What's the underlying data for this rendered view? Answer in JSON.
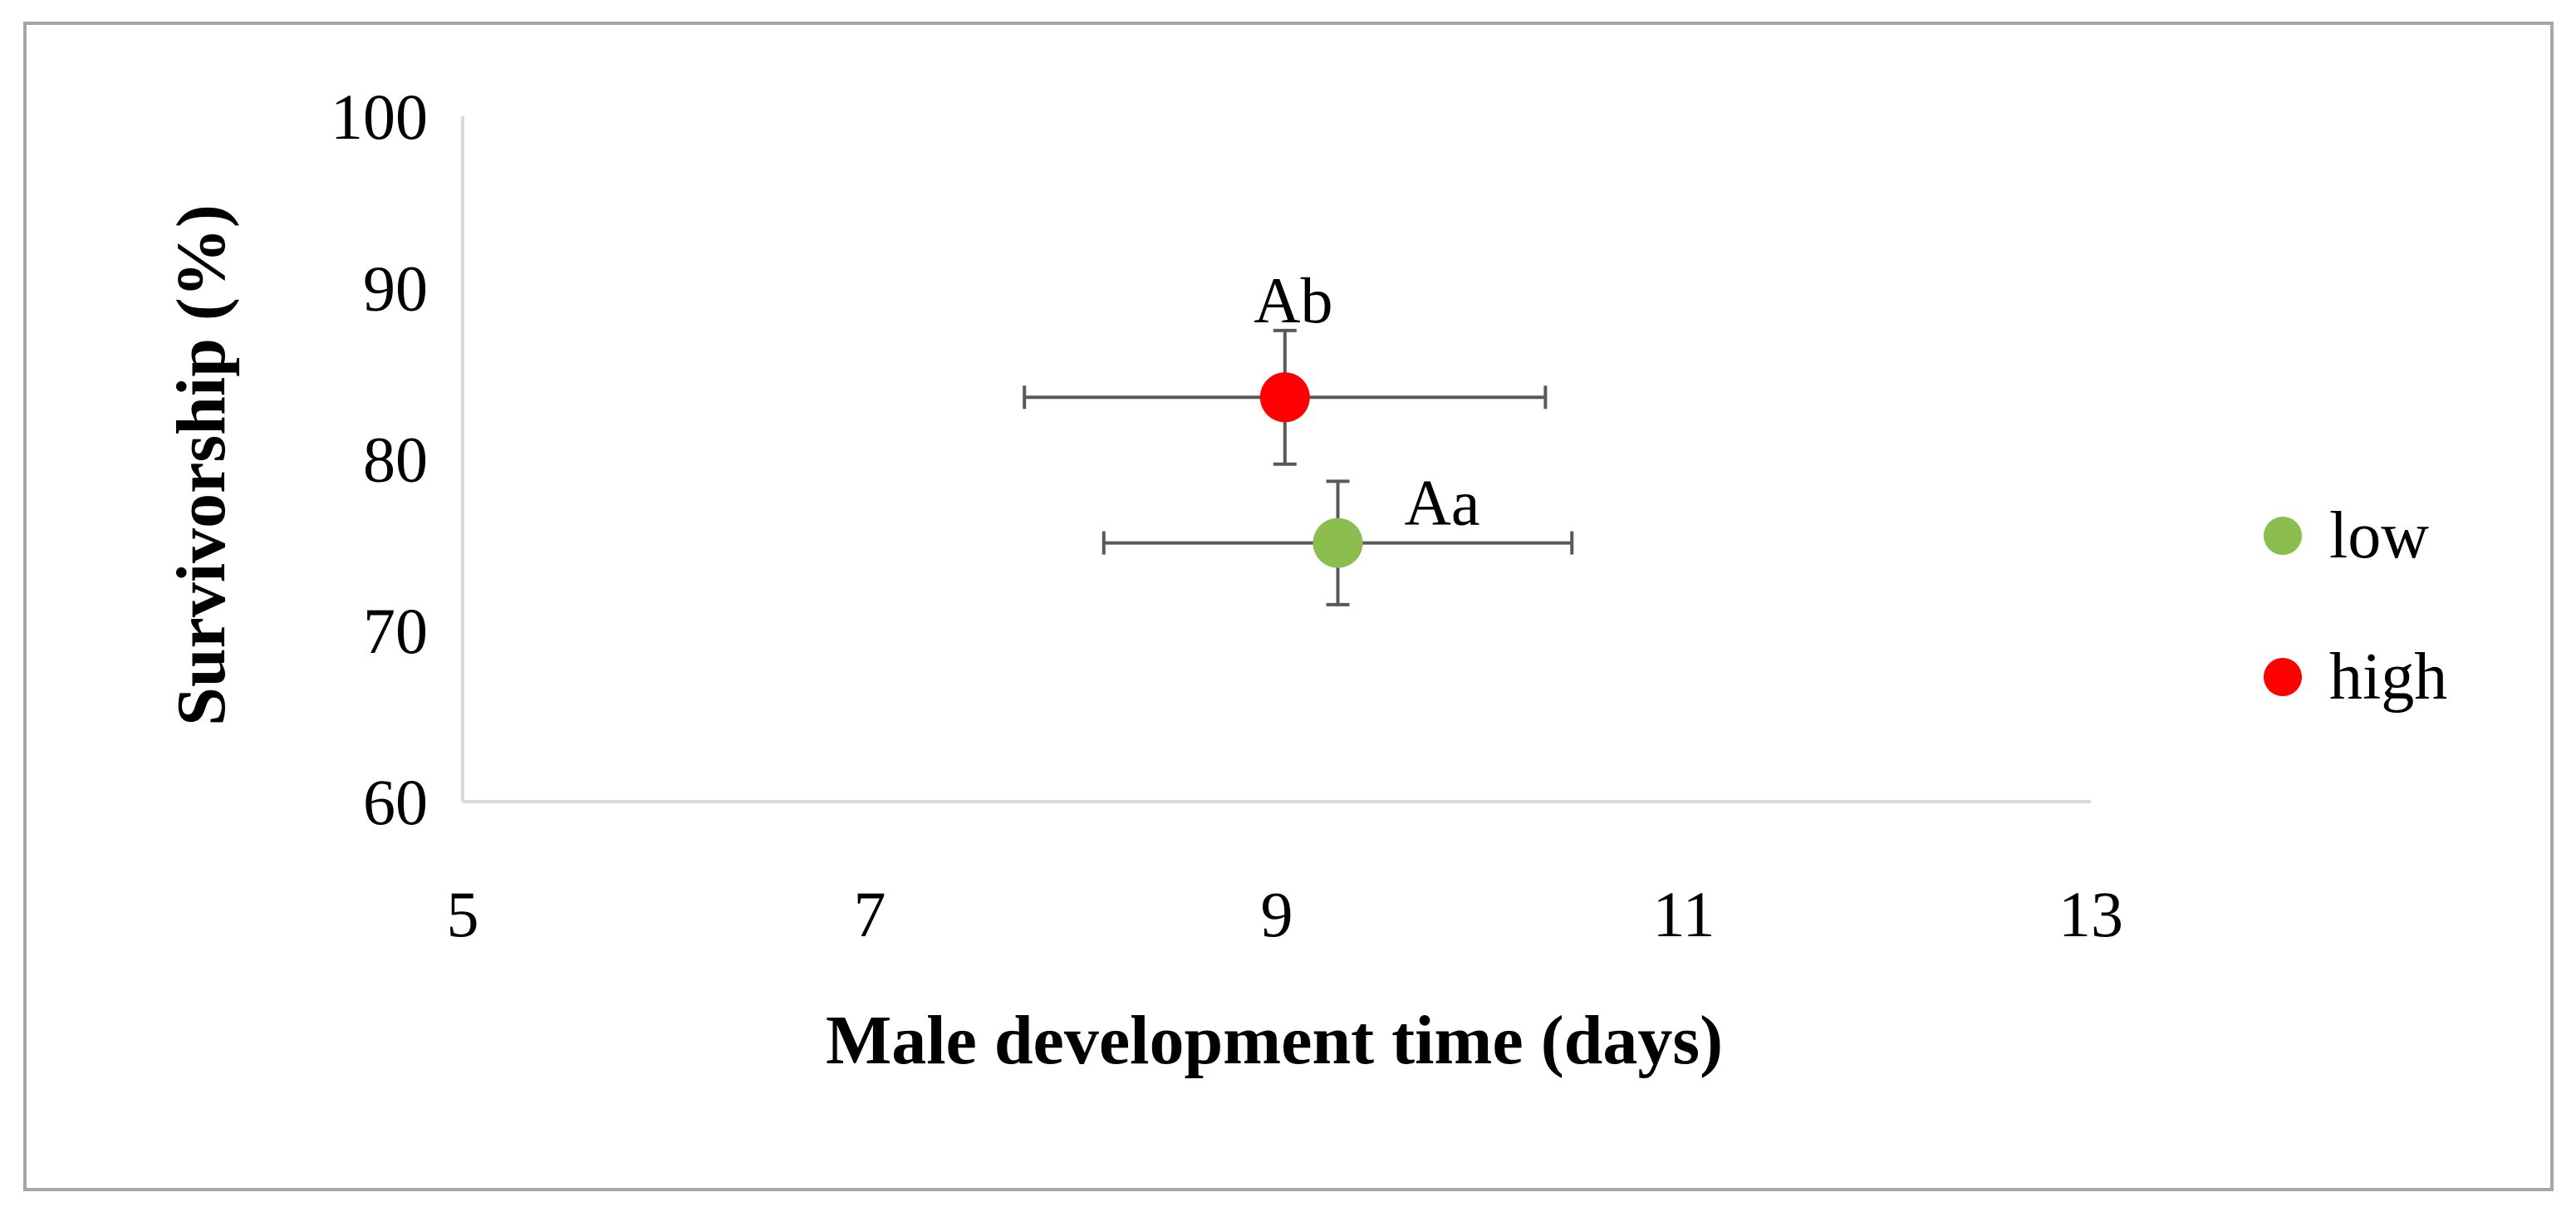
{
  "chart_data": {
    "type": "scatter",
    "title": "",
    "xlabel": "Male development time (days)",
    "ylabel": "Survivorship (%)",
    "xlim": [
      5,
      13
    ],
    "ylim": [
      60,
      100
    ],
    "xticks": [
      5,
      7,
      9,
      11,
      13
    ],
    "yticks": [
      60,
      70,
      80,
      90,
      100
    ],
    "grid": false,
    "legend_position": "right",
    "series": [
      {
        "name": "low",
        "color": "#8cbd4f",
        "points": [
          {
            "x": 9.3,
            "y": 75.1,
            "x_err": 1.15,
            "y_err": 3.6,
            "label": "Aa"
          }
        ]
      },
      {
        "name": "high",
        "color": "#ff0000",
        "points": [
          {
            "x": 9.04,
            "y": 83.6,
            "x_err": 1.28,
            "y_err": 3.9,
            "label": "Ab"
          }
        ]
      }
    ]
  }
}
